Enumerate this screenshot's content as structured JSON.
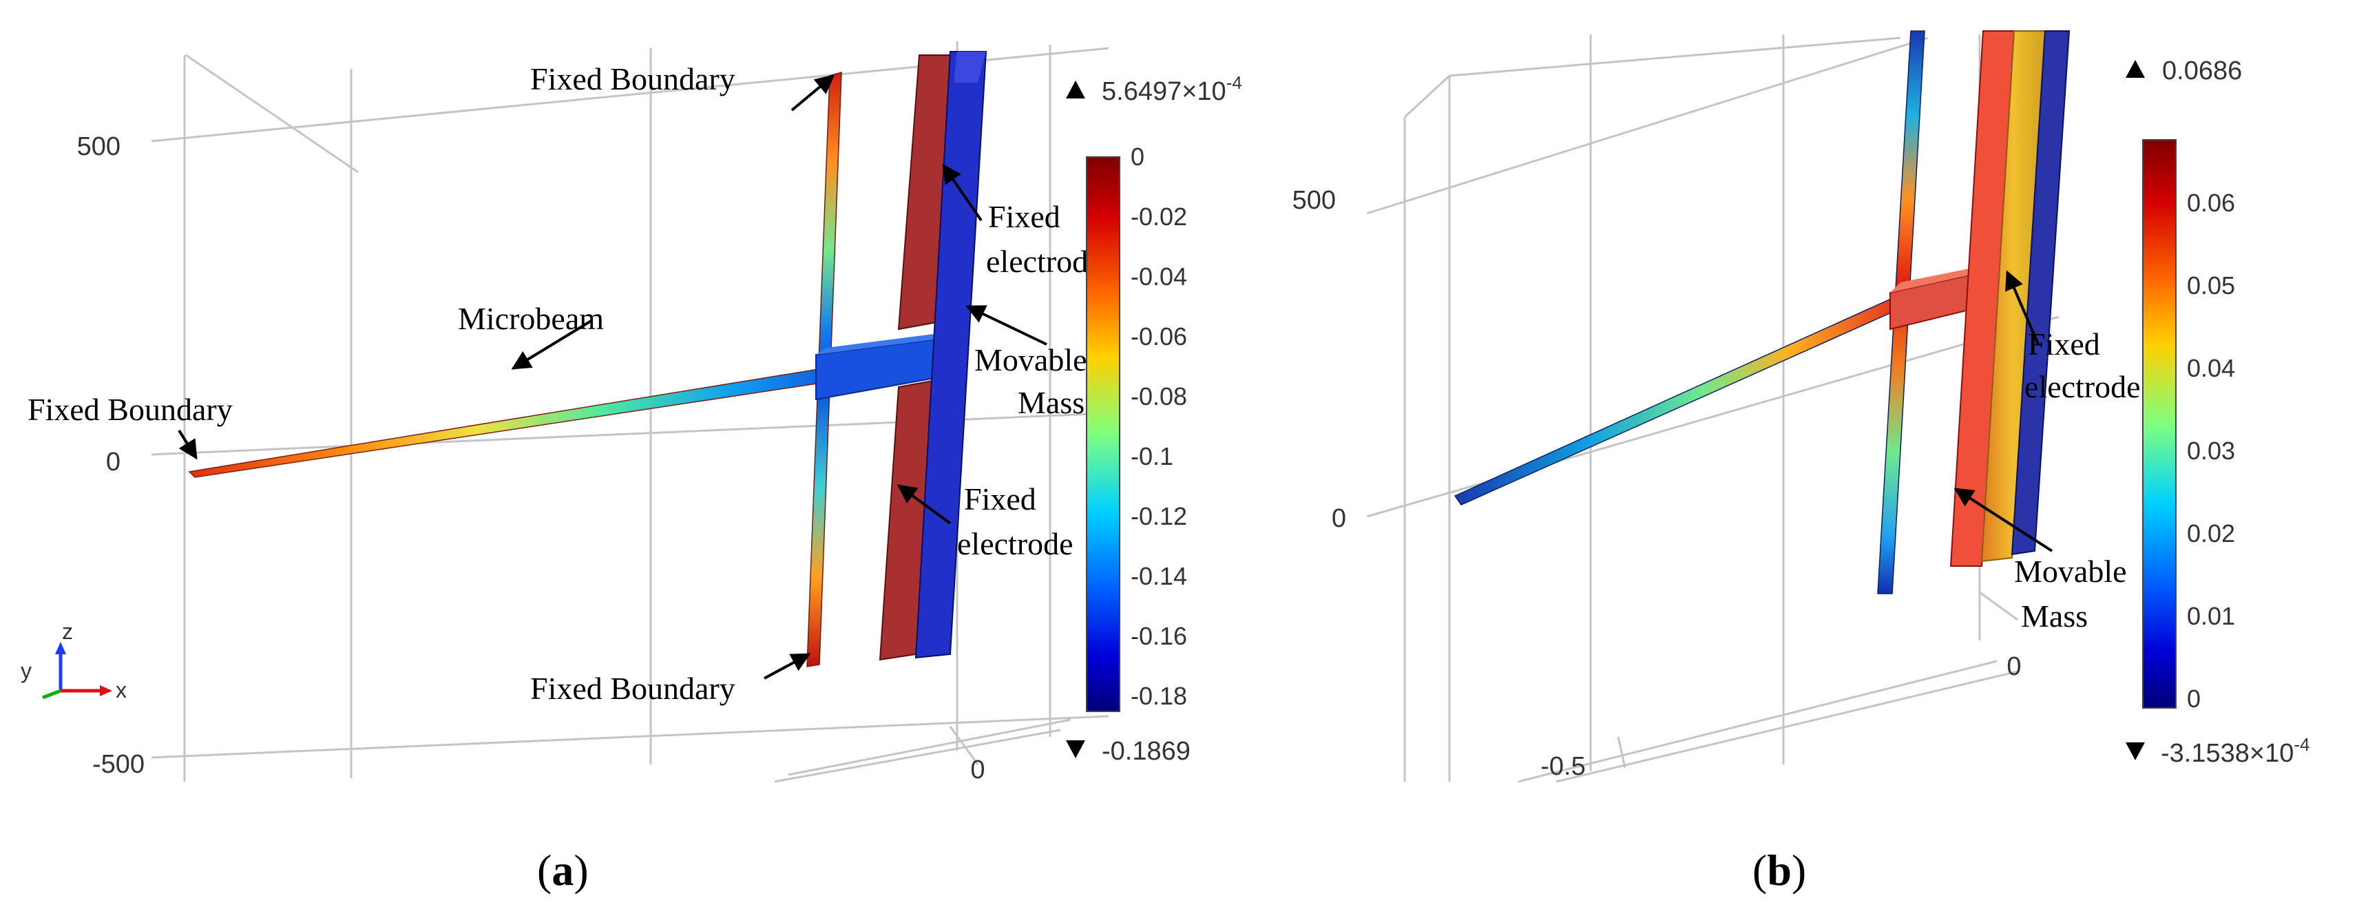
{
  "panel_a": {
    "caption": "a",
    "y_ticks": [
      "500",
      "0",
      "-500"
    ],
    "x_tick": "0",
    "triad": {
      "z": "z",
      "y": "y",
      "x": "x"
    },
    "colorbar": {
      "max_marker": "5.6497×10",
      "max_marker_exp": "-4",
      "min_marker": "-0.1869",
      "ticks": [
        "0",
        "-0.02",
        "-0.04",
        "-0.06",
        "-0.08",
        "-0.1",
        "-0.12",
        "-0.14",
        "-0.16",
        "-0.18"
      ]
    },
    "labels": {
      "fixed_boundary_top": "Fixed Boundary",
      "fixed_boundary_left": "Fixed Boundary",
      "fixed_boundary_bottom": "Fixed Boundary",
      "microbeam": "Microbeam",
      "fixed_electrode_top_1": "Fixed",
      "fixed_electrode_top_2": "electrode",
      "movable_mass_1": "Movable",
      "movable_mass_2": "Mass",
      "fixed_electrode_bottom_1": "Fixed",
      "fixed_electrode_bottom_2": "electrode"
    }
  },
  "panel_b": {
    "caption": "b",
    "y_ticks": [
      "500",
      "0"
    ],
    "x_ticks": [
      "0",
      "-0.5"
    ],
    "colorbar": {
      "max_marker": "0.0686",
      "min_marker": "-3.1538×10",
      "min_marker_exp": "-4",
      "ticks": [
        "0.06",
        "0.05",
        "0.04",
        "0.03",
        "0.02",
        "0.01",
        "0"
      ]
    },
    "labels": {
      "fixed_electrode_1": "Fixed",
      "fixed_electrode_2": "electrode",
      "movable_mass_1": "Movable",
      "movable_mass_2": "Mass"
    }
  },
  "colors": {
    "jet_red": "#8b0a0a",
    "jet_blue": "#0b1a8c",
    "frame_gray": "#bdbdbd",
    "arrow": "#000000"
  }
}
